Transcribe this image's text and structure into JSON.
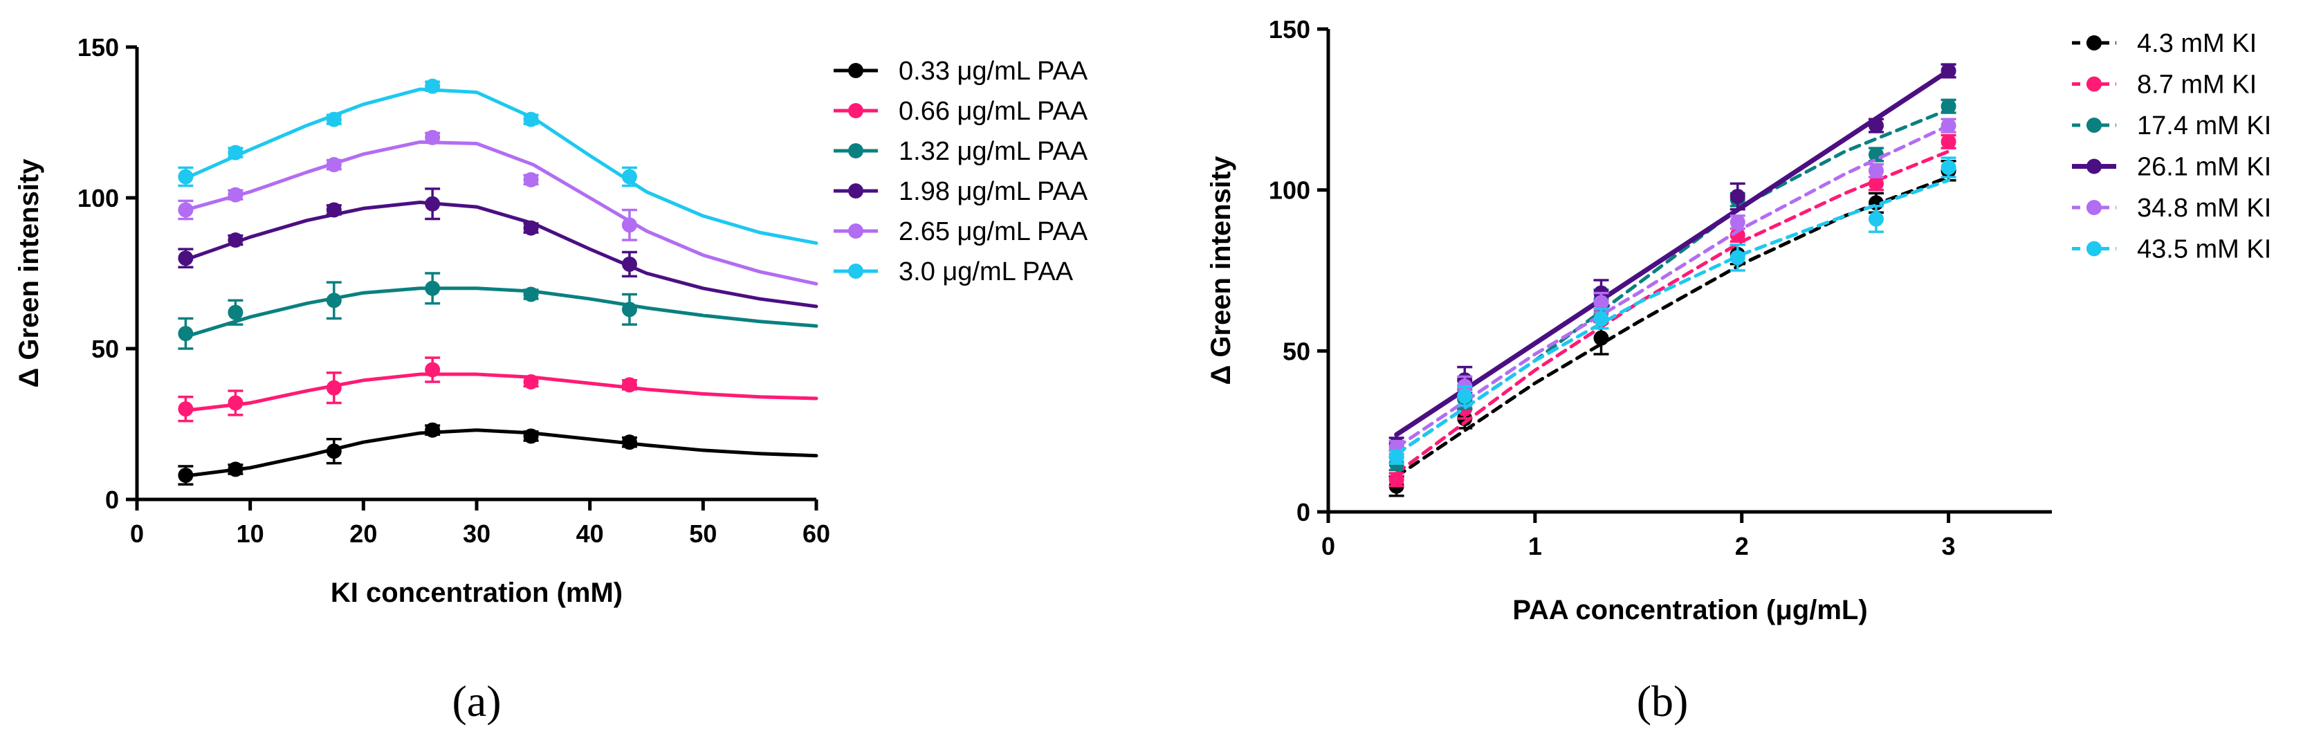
{
  "chart_data": [
    {
      "type": "line",
      "panel_label": "(a)",
      "xlabel": "KI concentration (mM)",
      "ylabel": "Δ Green intensity",
      "xlim": [
        0,
        60
      ],
      "ylim": [
        0,
        150
      ],
      "xticks": [
        0,
        10,
        20,
        30,
        40,
        50,
        60
      ],
      "yticks": [
        0,
        50,
        100,
        150
      ],
      "grid": false,
      "legend_position": "right",
      "x": [
        4.3,
        8.7,
        17.4,
        26.1,
        34.8,
        43.5
      ],
      "series": [
        {
          "name": "0.33 μg/mL PAA",
          "color": "#000000",
          "values": [
            8,
            10,
            16,
            23,
            21,
            19
          ],
          "errors": [
            3,
            1.5,
            4,
            1.5,
            1.5,
            1.5
          ],
          "fit": {
            "x": [
              4.3,
              10,
              15,
              20,
              25,
              30,
              35,
              40,
              45,
              50,
              55,
              60
            ],
            "y": [
              7.8,
              10.5,
              14.5,
              19,
              22,
              23,
              22,
              20,
              18,
              16.3,
              15.2,
              14.5
            ]
          }
        },
        {
          "name": "0.66 μg/mL PAA",
          "color": "#ff1a75",
          "values": [
            30,
            32,
            37,
            43,
            39,
            38
          ],
          "errors": [
            4,
            4,
            5,
            4,
            1.5,
            1.5
          ],
          "fit": {
            "x": [
              4.3,
              10,
              15,
              20,
              25,
              30,
              35,
              40,
              45,
              50,
              55,
              60
            ],
            "y": [
              29.5,
              32,
              36,
              39.5,
              41.5,
              41.5,
              40.5,
              38.5,
              36.5,
              35,
              34,
              33.5
            ]
          }
        },
        {
          "name": "1.32 μg/mL PAA",
          "color": "#0a8080",
          "values": [
            55,
            62,
            66,
            70,
            68,
            63
          ],
          "errors": [
            5,
            4,
            6,
            5,
            1.5,
            5
          ],
          "fit": {
            "x": [
              4.3,
              10,
              15,
              20,
              25,
              30,
              35,
              40,
              45,
              50,
              55,
              60
            ],
            "y": [
              54,
              60.5,
              65,
              68.5,
              70,
              70,
              69,
              66.5,
              63.5,
              61,
              59,
              57.5
            ]
          }
        },
        {
          "name": "1.98 μg/mL PAA",
          "color": "#4b0f82",
          "values": [
            80,
            86,
            96,
            98,
            90,
            78
          ],
          "errors": [
            3,
            1.5,
            1.5,
            5,
            1.5,
            4
          ],
          "fit": {
            "x": [
              4.3,
              10,
              15,
              20,
              25,
              30,
              35,
              40,
              45,
              50,
              55,
              60
            ],
            "y": [
              79.5,
              87,
              92.5,
              96.5,
              98.5,
              97,
              91.5,
              83,
              75,
              70,
              66.5,
              64
            ]
          }
        },
        {
          "name": "2.65 μg/mL PAA",
          "color": "#b26df2",
          "values": [
            96,
            101,
            111,
            120,
            106,
            91
          ],
          "errors": [
            3,
            1.5,
            1.5,
            1.5,
            1.5,
            5
          ],
          "fit": {
            "x": [
              4.3,
              10,
              15,
              20,
              25,
              30,
              35,
              40,
              45,
              50,
              55,
              60
            ],
            "y": [
              96,
              102,
              108.5,
              114.5,
              118.5,
              118,
              111,
              100,
              89,
              81,
              75.5,
              71.5
            ]
          }
        },
        {
          "name": "3.0 μg/mL PAA",
          "color": "#1ec8f0",
          "values": [
            107,
            115,
            126,
            137,
            126,
            107
          ],
          "errors": [
            3,
            1.5,
            1.5,
            1.5,
            1.5,
            3
          ],
          "fit": {
            "x": [
              4.3,
              10,
              15,
              20,
              25,
              30,
              35,
              40,
              45,
              50,
              55,
              60
            ],
            "y": [
              106.5,
              116,
              124,
              131,
              136,
              135,
              126.5,
              114,
              102,
              94,
              88.5,
              85
            ]
          }
        }
      ]
    },
    {
      "type": "line",
      "panel_label": "(b)",
      "xlabel": "PAA concentration (μg/mL)",
      "ylabel": "Δ Green intensity",
      "xlim": [
        0,
        3.5
      ],
      "ylim": [
        0,
        150
      ],
      "xticks": [
        0,
        1,
        2,
        3
      ],
      "yticks": [
        0,
        50,
        100,
        150
      ],
      "grid": false,
      "legend_position": "right",
      "x": [
        0.33,
        0.66,
        1.32,
        1.98,
        2.65,
        3.0
      ],
      "series": [
        {
          "name": "4.3 mM KI",
          "color": "#000000",
          "dashed": true,
          "values": [
            8,
            29,
            54,
            80,
            96,
            106
          ],
          "errors": [
            3,
            3,
            5,
            3,
            3,
            3
          ],
          "fit": {
            "x": [
              0.33,
              1.0,
              1.5,
              2.0,
              2.5,
              3.0
            ],
            "y": [
              11,
              40,
              59,
              77,
              92,
              104
            ]
          }
        },
        {
          "name": "8.7 mM KI",
          "color": "#ff1a75",
          "dashed": true,
          "values": [
            10,
            32,
            62,
            86,
            102,
            115
          ],
          "errors": [
            2,
            3,
            3,
            2,
            2,
            2
          ],
          "fit": {
            "x": [
              0.33,
              1.0,
              1.5,
              2.0,
              2.5,
              3.0
            ],
            "y": [
              12,
              44,
              65,
              84,
              99,
              112
            ]
          }
        },
        {
          "name": "17.4 mM KI",
          "color": "#0a8080",
          "dashed": true,
          "values": [
            15,
            35,
            66,
            97,
            111,
            126
          ],
          "errors": [
            2,
            3,
            3,
            2,
            2,
            2
          ],
          "fit": {
            "x": [
              0.33,
              1.0,
              1.5,
              2.0,
              2.5,
              3.0
            ],
            "y": [
              18,
              47,
              71,
              95,
              112,
              125
            ]
          }
        },
        {
          "name": "26.1 mM KI",
          "color": "#4b0f82",
          "dashed": false,
          "values": [
            21,
            41,
            68,
            98,
            120,
            137
          ],
          "errors": [
            2,
            4,
            4,
            4,
            2,
            2
          ],
          "fit": {
            "x": [
              0.33,
              3.0
            ],
            "y": [
              24,
              137
            ]
          }
        },
        {
          "name": "34.8 mM KI",
          "color": "#b26df2",
          "dashed": true,
          "values": [
            20,
            39,
            65,
            90,
            106,
            120
          ],
          "errors": [
            2,
            3,
            3,
            2,
            2,
            2
          ],
          "fit": {
            "x": [
              0.33,
              1.0,
              1.5,
              2.0,
              2.5,
              3.0
            ],
            "y": [
              20,
              49,
              68,
              88,
              105,
              120
            ]
          }
        },
        {
          "name": "43.5 mM KI",
          "color": "#1ec8f0",
          "dashed": true,
          "values": [
            17,
            36,
            60,
            79,
            91,
            107
          ],
          "errors": [
            2,
            3,
            3,
            4,
            4,
            3
          ],
          "fit": {
            "x": [
              0.33,
              1.0,
              1.5,
              2.0,
              2.5,
              3.0
            ],
            "y": [
              18,
              47,
              65,
              80,
              92,
              103
            ]
          }
        }
      ]
    }
  ]
}
